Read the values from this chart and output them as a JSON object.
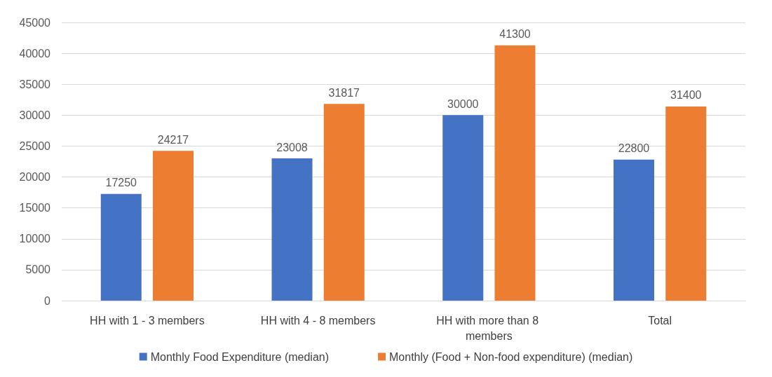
{
  "chart_data": {
    "type": "bar",
    "categories": [
      "HH with 1 - 3 members",
      "HH with 4 - 8 members",
      "HH with more than 8 members",
      "Total"
    ],
    "series": [
      {
        "name": "Monthly Food Expenditure (median)",
        "color": "#4472c4",
        "values": [
          17250,
          23008,
          30000,
          22800
        ]
      },
      {
        "name": "Monthly (Food + Non-food expenditure) (median)",
        "color": "#ed7d31",
        "values": [
          24217,
          31817,
          41300,
          31400
        ]
      }
    ],
    "ylim": [
      0,
      45000
    ],
    "yticks": [
      0,
      5000,
      10000,
      15000,
      20000,
      25000,
      30000,
      35000,
      40000,
      45000
    ],
    "grid": "y",
    "legend": "bottom",
    "data_labels": true
  }
}
